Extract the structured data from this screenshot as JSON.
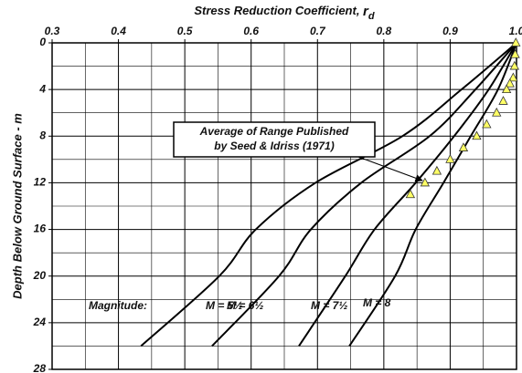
{
  "chart_data": {
    "type": "line",
    "xlabel": "Stress Reduction Coefficient, ",
    "xlabel_symbol": "r",
    "xlabel_subscript": "d",
    "ylabel": "Depth Below Ground Surface - m",
    "xlim": [
      0.3,
      1.0
    ],
    "ylim": [
      0,
      28
    ],
    "y_inverted": true,
    "xticks": [
      0.3,
      0.4,
      0.5,
      0.6,
      0.7,
      0.8,
      0.9,
      {
        "value": 1.0,
        "label": "1.0"
      }
    ],
    "yticks": [
      0,
      4,
      8,
      12,
      16,
      20,
      24,
      28
    ],
    "x_minor_ticks": [
      0.35,
      0.45,
      0.55,
      0.65,
      0.75,
      0.85,
      0.95
    ],
    "y_minor_ticks": [
      2,
      6,
      10,
      14,
      18,
      22,
      26
    ],
    "grid": true,
    "magnitude_label": "Magnitude:",
    "series": [
      {
        "name": "M = 5½",
        "color": "#000000",
        "x": [
          1.0,
          0.917,
          0.828,
          0.697,
          0.607,
          0.552,
          0.434
        ],
        "y": [
          0,
          4,
          8,
          12,
          16,
          20,
          26
        ]
      },
      {
        "name": "M = 6½",
        "color": "#000000",
        "x": [
          1.0,
          0.938,
          0.869,
          0.766,
          0.69,
          0.642,
          0.541
        ],
        "y": [
          0,
          4,
          8,
          12,
          16,
          20,
          26
        ]
      },
      {
        "name": "M = 7½",
        "color": "#000000",
        "x": [
          1.0,
          0.958,
          0.906,
          0.848,
          0.786,
          0.742,
          0.672
        ],
        "y": [
          0,
          4,
          8,
          12,
          16,
          20,
          26
        ]
      },
      {
        "name": "M = 8",
        "color": "#000000",
        "x": [
          1.0,
          0.972,
          0.931,
          0.89,
          0.848,
          0.817,
          0.748
        ],
        "y": [
          0,
          4,
          8,
          12,
          16,
          20,
          26
        ]
      }
    ],
    "points": {
      "name": "Average of Range Published by Seed & Idriss (1971)",
      "color": "#ffff66",
      "x": [
        0.999,
        0.998,
        0.997,
        0.995,
        0.99,
        0.985,
        0.98,
        0.97,
        0.955,
        0.94,
        0.92,
        0.9,
        0.88,
        0.862,
        0.84
      ],
      "y": [
        0,
        1,
        2,
        3,
        3.5,
        4,
        5,
        6,
        7,
        8,
        9,
        10,
        11,
        12,
        13
      ]
    },
    "annotation": [
      "Average of Range Published",
      "by Seed & Idriss (1971)"
    ]
  }
}
